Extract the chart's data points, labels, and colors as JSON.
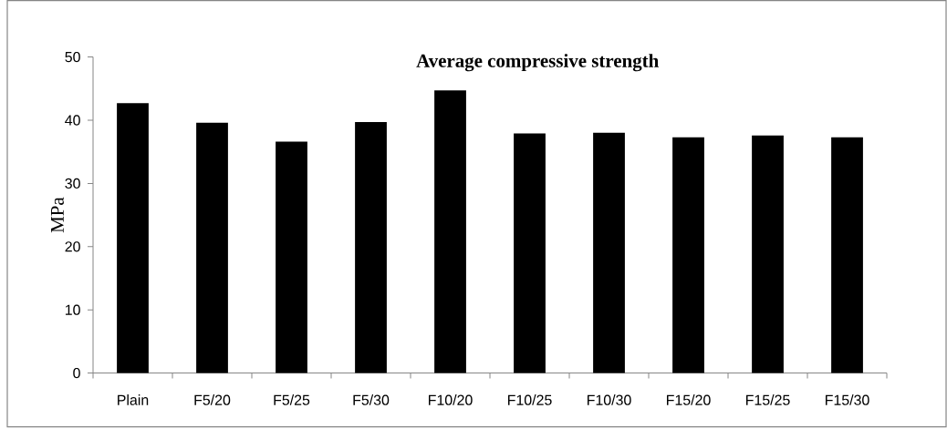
{
  "chart_data": {
    "type": "bar",
    "title": "Average compressive strength",
    "ylabel": "MPa",
    "categories": [
      "Plain",
      "F5/20",
      "F5/25",
      "F5/30",
      "F10/20",
      "F10/25",
      "F10/30",
      "F15/20",
      "F15/25",
      "F15/30"
    ],
    "values": [
      42.7,
      39.6,
      36.6,
      39.7,
      44.7,
      37.9,
      38.0,
      37.3,
      37.6,
      37.3
    ],
    "color": "#000000",
    "ylim": [
      0,
      50
    ],
    "yticks": [
      0,
      10,
      20,
      30,
      40,
      50
    ]
  }
}
